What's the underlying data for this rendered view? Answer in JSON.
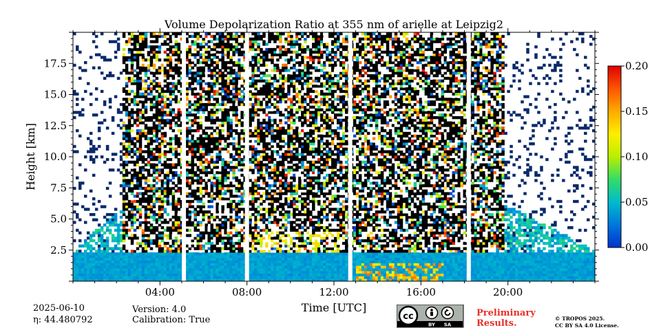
{
  "chart_data": {
    "type": "heatmap",
    "title": "Volume Depolarization Ratio at 355 nm of arielle at Leipzig2",
    "xlabel": "Time [UTC]",
    "ylabel": "Height [km]",
    "x_ticks": [
      "04:00",
      "08:00",
      "12:00",
      "16:00",
      "20:00"
    ],
    "x_tick_hours": [
      4,
      8,
      12,
      16,
      20
    ],
    "xlim_hours": [
      0,
      24
    ],
    "y_ticks": [
      "2.5",
      "5.0",
      "7.5",
      "10.0",
      "12.5",
      "15.0",
      "17.5"
    ],
    "y_tick_values": [
      2.5,
      5.0,
      7.5,
      10.0,
      12.5,
      15.0,
      17.5
    ],
    "ylim": [
      0,
      20
    ],
    "colorbar": {
      "ticks": [
        "0.00",
        "0.05",
        "0.10",
        "0.15",
        "0.20"
      ],
      "tick_values": [
        0.0,
        0.05,
        0.1,
        0.15,
        0.2
      ],
      "range": [
        0.0,
        0.2
      ],
      "colors": [
        "#0033cc",
        "#0077dd",
        "#00bbcc",
        "#33dd66",
        "#bbee00",
        "#ffee00",
        "#ffaa00",
        "#ff5500",
        "#dd0000"
      ]
    },
    "data_gaps_hours": [
      5.1,
      8.0,
      12.75,
      18.2
    ],
    "layers": {
      "boundary_layer_top_km": 2.3,
      "aerosol_plume_km": [
        2.5,
        4.0
      ],
      "noise_top_km": 20
    }
  },
  "footer": {
    "date": "2025-06-10",
    "eta": "η: 44.480792",
    "version": "Version: 4.0",
    "calibration": "Calibration: True",
    "preliminary_line1": "Preliminary",
    "preliminary_line2": "Results.",
    "copyright_line1": "© TROPOS 2025.",
    "copyright_line2": "CC BY SA 4.0 License.",
    "license_badge": [
      "cc",
      "BY",
      "SA"
    ]
  }
}
